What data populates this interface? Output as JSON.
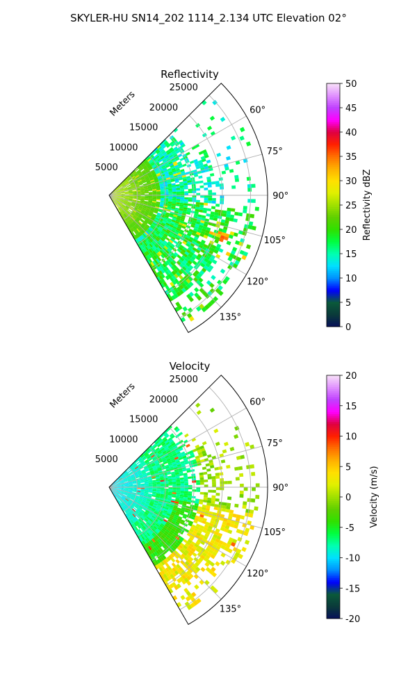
{
  "figure": {
    "title": "SKYLER-HU  SN14_202  1114_2.134 UTC Elevation 02°"
  },
  "chart_data": [
    {
      "type": "polar-ppi",
      "title": "Reflectivity",
      "range_label": "Meters",
      "azimuth_range_deg": [
        45,
        150
      ],
      "range_max_m": 28000,
      "range_ticks": [
        "5000",
        "10000",
        "15000",
        "20000",
        "25000"
      ],
      "azimuth_ticks": [
        "60°",
        "75°",
        "90°",
        "105°",
        "120°",
        "135°"
      ],
      "colorbar": {
        "label": "Reflectivity dBZ",
        "min": 0,
        "max": 50,
        "ticks": [
          "0",
          "5",
          "10",
          "15",
          "20",
          "25",
          "30",
          "35",
          "40",
          "45",
          "50"
        ],
        "stops": [
          "#08105a",
          "#0a3a3a",
          "#0a5a3a",
          "#0000ff",
          "#0090ff",
          "#00e0ff",
          "#00ffb0",
          "#00ff40",
          "#30e000",
          "#60d000",
          "#a0e000",
          "#e0f000",
          "#ffe000",
          "#ffb000",
          "#ff7000",
          "#ff2000",
          "#e00040",
          "#ff00ff",
          "#c040ff",
          "#e090ff",
          "#f8e0f8"
        ]
      },
      "field_summary": "dominant values 12-22 dBZ; near-radar returns 20-26 dBZ; isolated peaks 30-36 dBZ near 105-115° at 19-22 km"
    },
    {
      "type": "polar-ppi",
      "title": "Velocity",
      "range_label": "Meters",
      "azimuth_range_deg": [
        45,
        150
      ],
      "range_max_m": 28000,
      "range_ticks": [
        "5000",
        "10000",
        "15000",
        "20000",
        "25000"
      ],
      "azimuth_ticks": [
        "60°",
        "75°",
        "90°",
        "105°",
        "120°",
        "135°"
      ],
      "colorbar": {
        "label": "Velocity (m/s)",
        "min": -20,
        "max": 20,
        "ticks": [
          "-20",
          "-15",
          "-10",
          "-5",
          "0",
          "5",
          "10",
          "15",
          "20"
        ],
        "stops": [
          "#08105a",
          "#0a3a3a",
          "#0a5a3a",
          "#0000ff",
          "#0090ff",
          "#00e0ff",
          "#00ffb0",
          "#00ff40",
          "#30e000",
          "#60d000",
          "#a0e000",
          "#e0f000",
          "#ffe000",
          "#ffb000",
          "#ff7000",
          "#ff2000",
          "#e00040",
          "#ff00ff",
          "#c040ff",
          "#e090ff",
          "#f8e0f8"
        ]
      },
      "field_summary": "near radar about -10 m/s, mid range about -6 m/s, far range 0 to +2 m/s, a few +8 to +11 m/s gates"
    }
  ]
}
